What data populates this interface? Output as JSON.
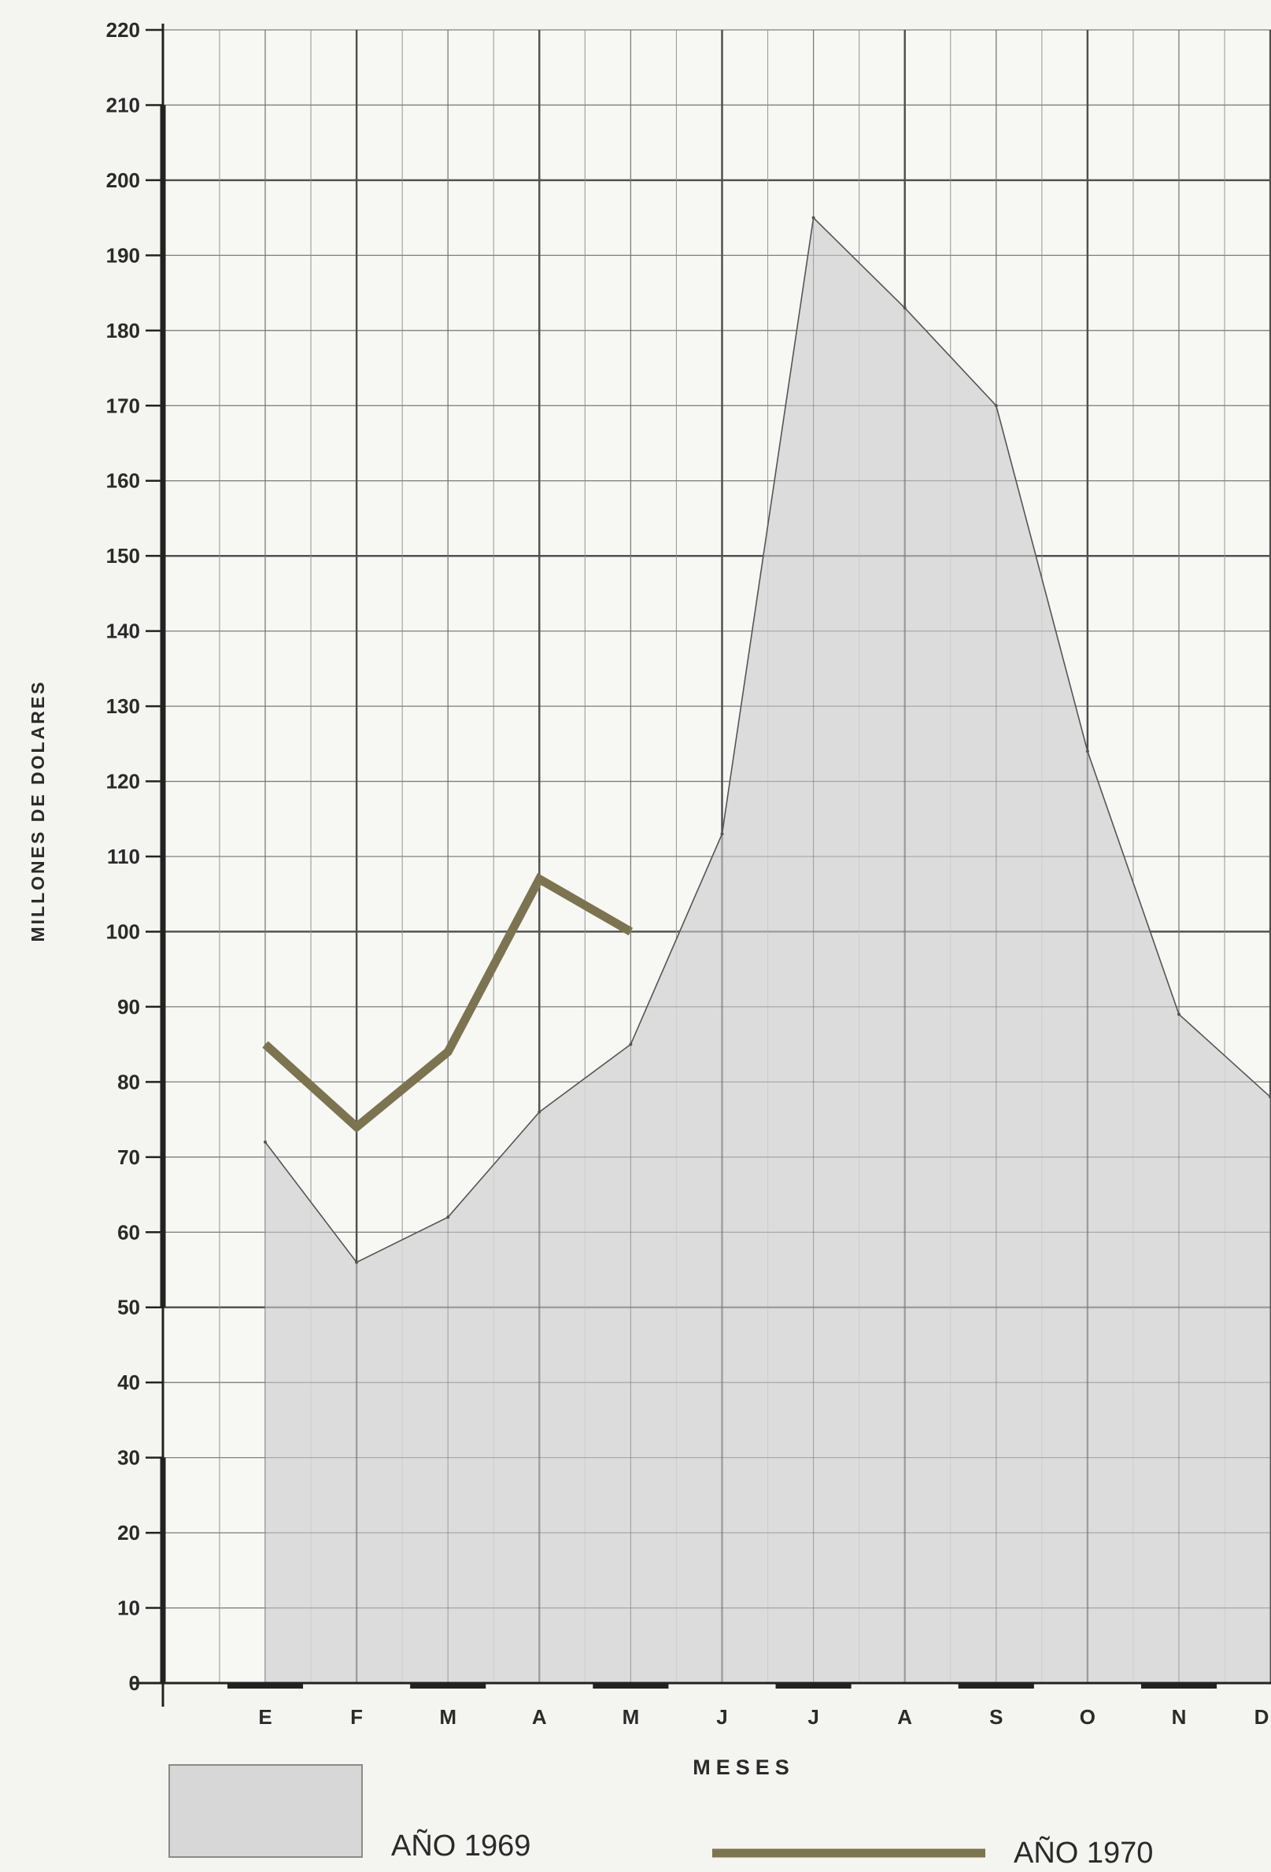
{
  "chart_data": {
    "type": "area",
    "ylabel": "MILLONES DE DOLARES",
    "xlabel": "MESES",
    "categories": [
      "E",
      "F",
      "M",
      "A",
      "M",
      "J",
      "J",
      "A",
      "S",
      "O",
      "N",
      "D"
    ],
    "ylim": [
      0,
      220
    ],
    "yticks": [
      0,
      10,
      20,
      30,
      40,
      50,
      60,
      70,
      80,
      90,
      100,
      110,
      120,
      130,
      140,
      150,
      160,
      170,
      180,
      190,
      200,
      210,
      220
    ],
    "grid": true,
    "legend_position": "bottom",
    "series": [
      {
        "name": "AÑO 1969",
        "kind": "area",
        "color": "#d7d7d7",
        "values": [
          72,
          56,
          62,
          76,
          85,
          113,
          195,
          183,
          170,
          124,
          89,
          78
        ]
      },
      {
        "name": "AÑO 1970",
        "kind": "line",
        "color": "#7c7350",
        "values": [
          85,
          74,
          84,
          107,
          100,
          null,
          null,
          null,
          null,
          null,
          null,
          null
        ]
      }
    ]
  }
}
